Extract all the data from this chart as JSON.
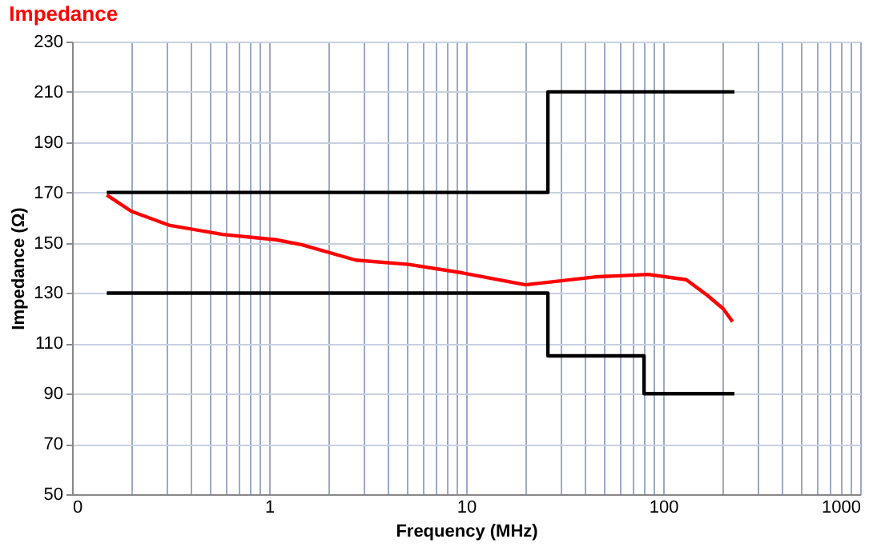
{
  "chart_data": {
    "type": "line",
    "title": "Impedance",
    "xlabel": "Frequency (MHz)",
    "ylabel": "Impedance (Ω)",
    "log": "x",
    "grid": true,
    "legend": false,
    "line_style": "solid",
    "marker": "none",
    "xlim": [
      0.1,
      1000
    ],
    "ylim": [
      50,
      230
    ],
    "xticks": [
      {
        "value": 0.1,
        "label": "0"
      },
      {
        "value": 0.2,
        "label": null
      },
      {
        "value": 0.3,
        "label": null
      },
      {
        "value": 0.4,
        "label": null
      },
      {
        "value": 0.5,
        "label": null
      },
      {
        "value": 0.6,
        "label": null
      },
      {
        "value": 0.7,
        "label": null
      },
      {
        "value": 0.8,
        "label": null
      },
      {
        "value": 0.9,
        "label": null
      },
      1,
      {
        "value": 2,
        "label": null
      },
      {
        "value": 3,
        "label": null
      },
      {
        "value": 4,
        "label": null
      },
      {
        "value": 5,
        "label": null
      },
      {
        "value": 6,
        "label": null
      },
      {
        "value": 7,
        "label": null
      },
      {
        "value": 8,
        "label": null
      },
      {
        "value": 9,
        "label": null
      },
      10,
      {
        "value": 20,
        "label": null
      },
      {
        "value": 30,
        "label": null
      },
      {
        "value": 40,
        "label": null
      },
      {
        "value": 50,
        "label": null
      },
      {
        "value": 60,
        "label": null
      },
      {
        "value": 70,
        "label": null
      },
      {
        "value": 80,
        "label": null
      },
      {
        "value": 90,
        "label": null
      },
      100,
      {
        "value": 200,
        "label": null
      },
      {
        "value": 300,
        "label": null
      },
      {
        "value": 400,
        "label": null
      },
      {
        "value": 500,
        "label": null
      },
      {
        "value": 600,
        "label": null
      },
      {
        "value": 700,
        "label": null
      },
      {
        "value": 800,
        "label": null
      },
      {
        "value": 900,
        "label": null
      },
      1000
    ],
    "yticks": [
      50,
      70,
      90,
      110,
      130,
      150,
      170,
      190,
      210,
      230
    ],
    "series": [
      {
        "color": "#000000",
        "x": [
          0.15,
          26,
          26,
          230
        ],
        "values": [
          170,
          170,
          210,
          210
        ]
      },
      {
        "color": "#000000",
        "x": [
          0.15,
          26,
          26,
          80,
          80,
          230
        ],
        "values": [
          130,
          130,
          105,
          105,
          90,
          90
        ]
      },
      {
        "color": "#ff0000",
        "x": [
          0.15,
          0.2,
          0.31,
          0.58,
          1.08,
          1.47,
          2.75,
          5.1,
          9.6,
          20,
          45,
          84,
          131,
          167,
          202,
          225
        ],
        "values": [
          169,
          162.5,
          157,
          153.3,
          151.2,
          149.2,
          143.1,
          141.4,
          138,
          133.3,
          136.4,
          137.4,
          135.3,
          129.2,
          123.7,
          118.6
        ]
      }
    ]
  }
}
